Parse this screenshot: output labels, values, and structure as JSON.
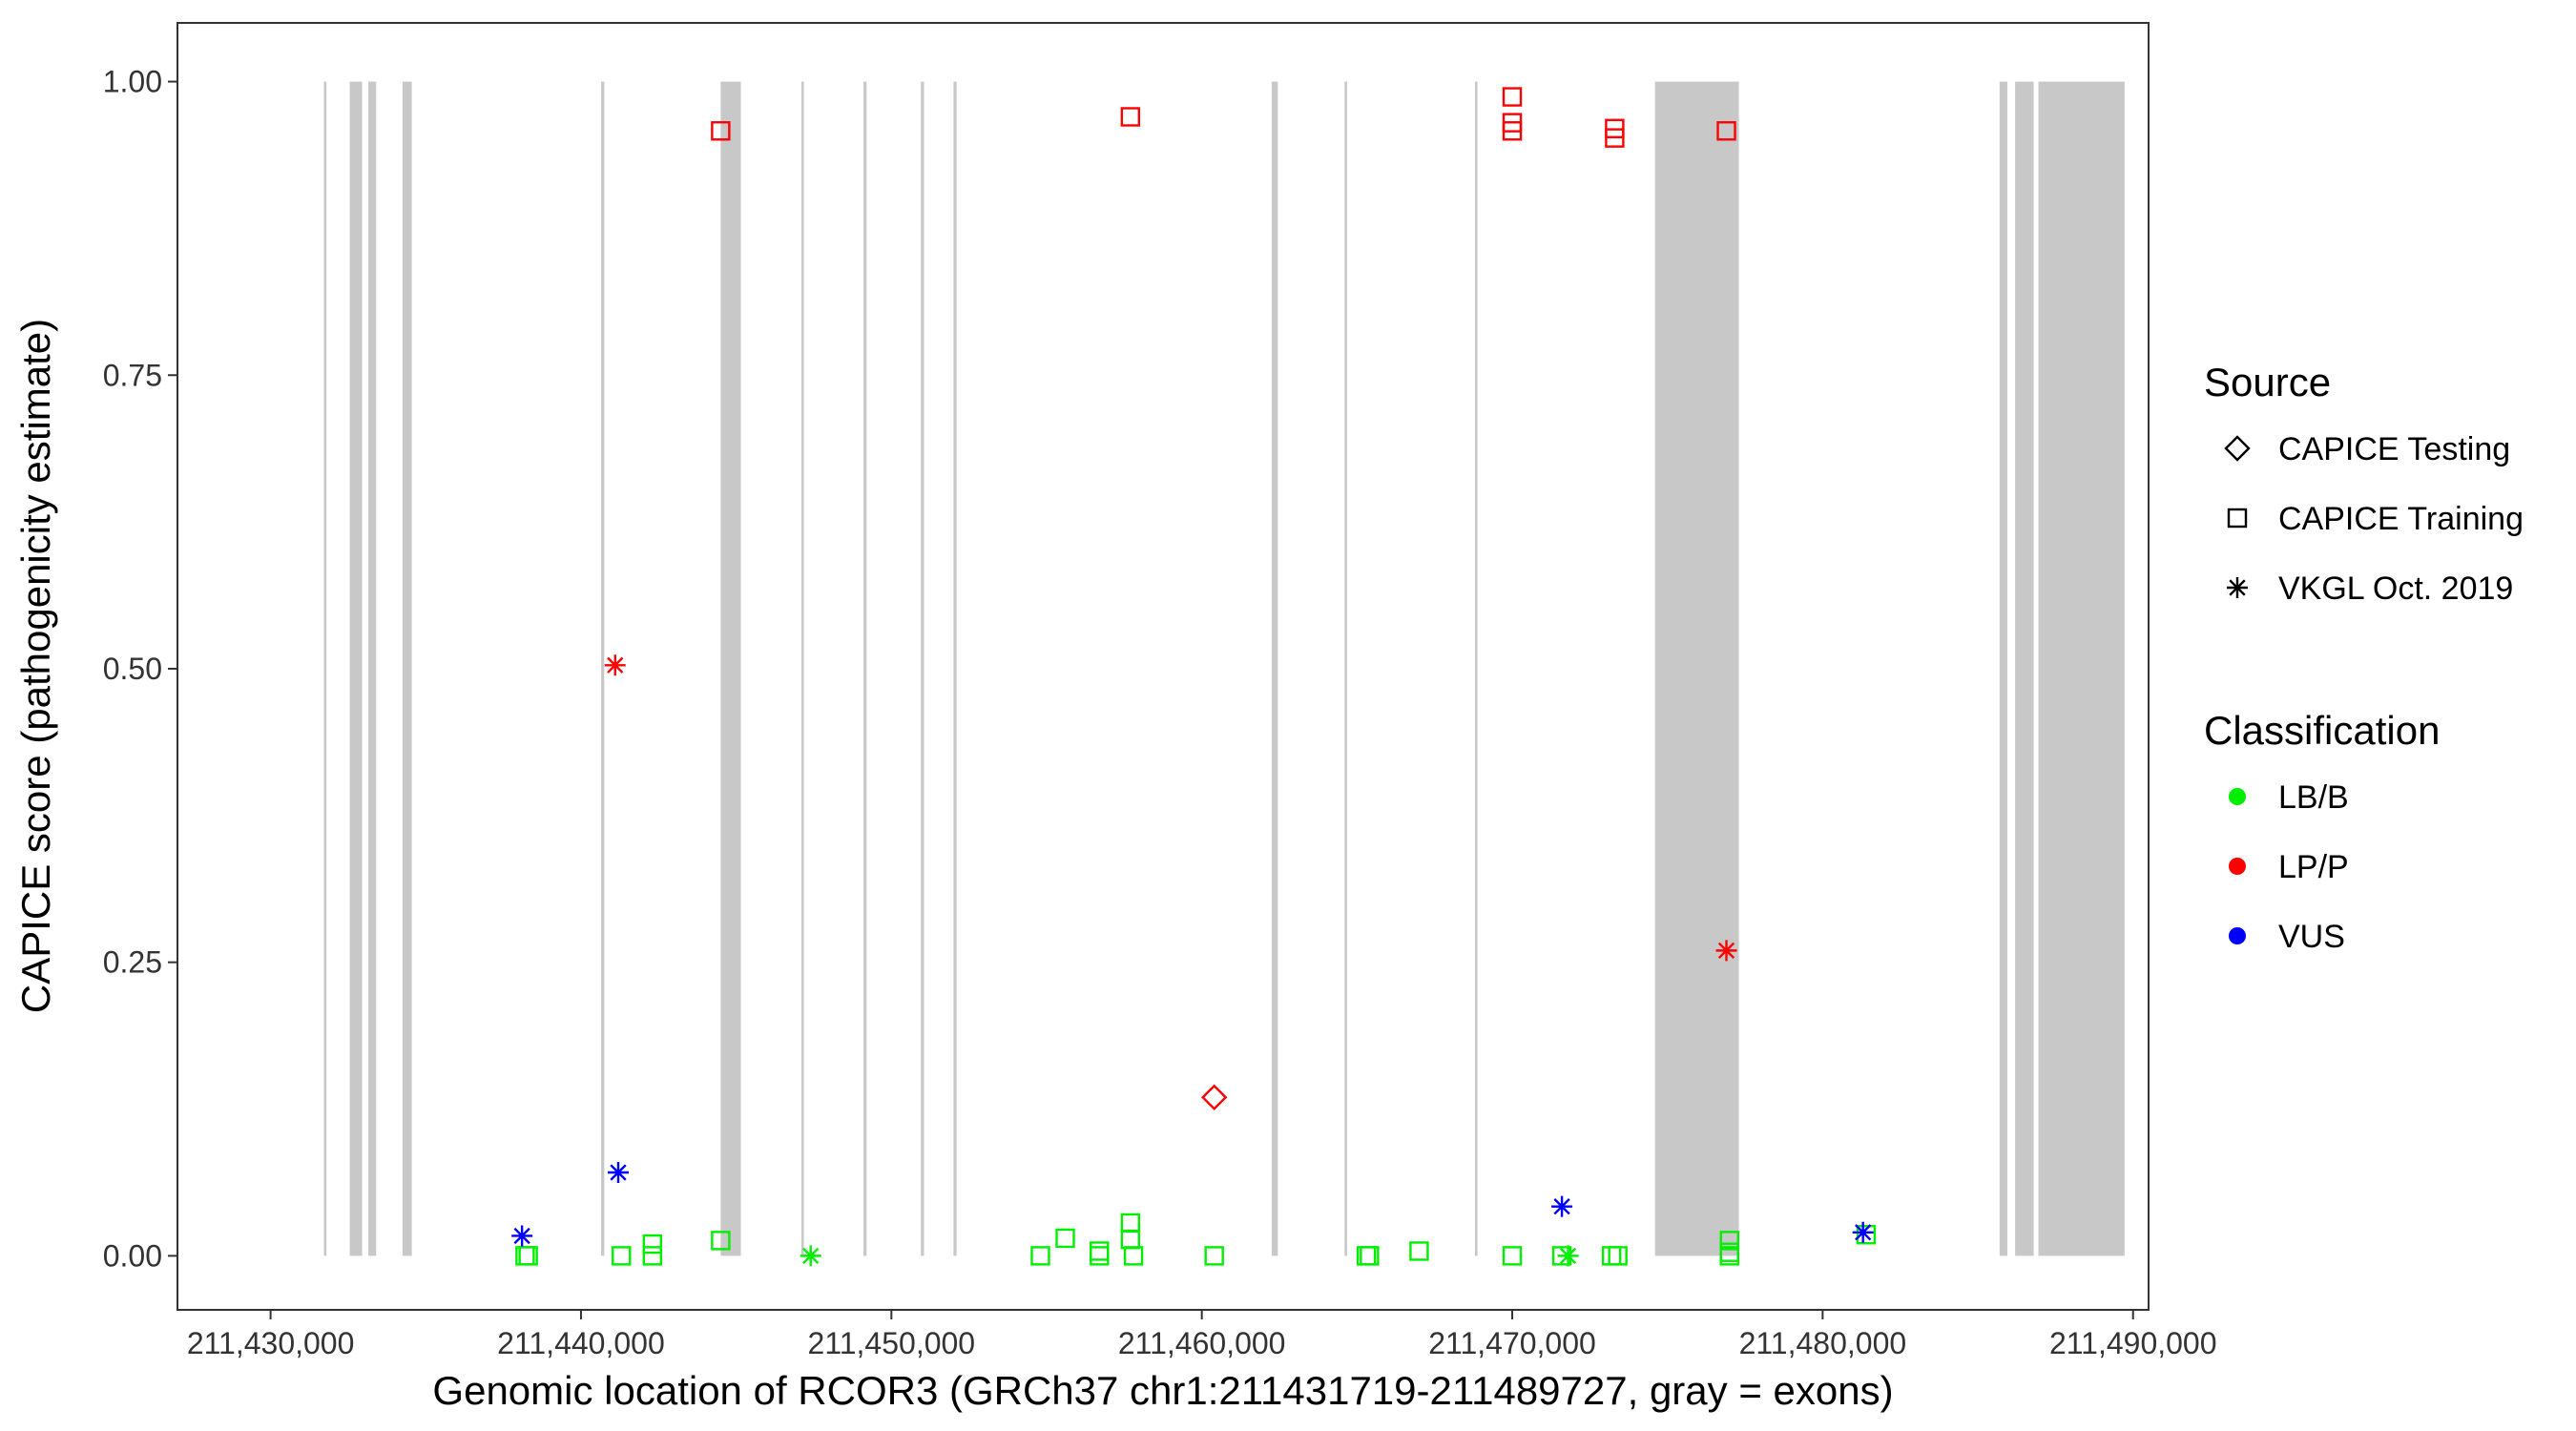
{
  "chart_data": {
    "type": "scatter",
    "title": "",
    "xlabel": "Genomic location of RCOR3 (GRCh37 chr1:211431719-211489727, gray = exons)",
    "ylabel": "CAPICE score (pathogenicity estimate)",
    "xlim": [
      211427000,
      211490500
    ],
    "ylim": [
      -0.046,
      1.05
    ],
    "x_ticks": [
      211430000,
      211440000,
      211450000,
      211460000,
      211470000,
      211480000,
      211490000
    ],
    "x_tick_labels": [
      "211,430,000",
      "211,440,000",
      "211,450,000",
      "211,460,000",
      "211,470,000",
      "211,480,000",
      "211,490,000"
    ],
    "y_ticks": [
      0,
      0.25,
      0.5,
      0.75,
      1.0
    ],
    "y_tick_labels": [
      "0.00",
      "0.25",
      "0.50",
      "0.75",
      "1.00"
    ],
    "grid": false,
    "exons": [
      [
        211431719,
        211431800
      ],
      [
        211432550,
        211432950
      ],
      [
        211433150,
        211433400
      ],
      [
        211434250,
        211434550
      ],
      [
        211440650,
        211440750
      ],
      [
        211444500,
        211445150
      ],
      [
        211447100,
        211447180
      ],
      [
        211449100,
        211449200
      ],
      [
        211450950,
        211451050
      ],
      [
        211452000,
        211452100
      ],
      [
        211462250,
        211462450
      ],
      [
        211464600,
        211464680
      ],
      [
        211468800,
        211468880
      ],
      [
        211474600,
        211477300
      ],
      [
        211485700,
        211485950
      ],
      [
        211486200,
        211486800
      ],
      [
        211486950,
        211489727
      ]
    ],
    "exon_color": "#c8c8c8",
    "legend": {
      "placement": "right",
      "source_title": "Source",
      "source_items": [
        {
          "label": "CAPICE Testing",
          "shape": "diamond"
        },
        {
          "label": "CAPICE Training",
          "shape": "square"
        },
        {
          "label": "VKGL Oct. 2019",
          "shape": "asterisk"
        }
      ],
      "class_title": "Classification",
      "class_items": [
        {
          "label": "LB/B",
          "color": "#00ee00"
        },
        {
          "label": "LP/P",
          "color": "#ff0000"
        },
        {
          "label": "VUS",
          "color": "#0000ff"
        }
      ]
    },
    "colors": {
      "LB/B": "#00ee00",
      "LP/P": "#ff0000",
      "VUS": "#0000ff"
    },
    "series": [
      {
        "source": "CAPICE Training",
        "shape": "square",
        "classification": "LP/P",
        "points": [
          [
            211444500,
            0.958
          ],
          [
            211457700,
            0.97
          ],
          [
            211470000,
            0.987
          ],
          [
            211470000,
            0.965
          ],
          [
            211470000,
            0.958
          ],
          [
            211473300,
            0.96
          ],
          [
            211473300,
            0.952
          ],
          [
            211476900,
            0.958
          ]
        ]
      },
      {
        "source": "CAPICE Training",
        "shape": "square",
        "classification": "LB/B",
        "points": [
          [
            211438200,
            0.0
          ],
          [
            211438300,
            0.0
          ],
          [
            211441300,
            0.0
          ],
          [
            211442300,
            0.01
          ],
          [
            211442300,
            0.0
          ],
          [
            211444500,
            0.013
          ],
          [
            211454800,
            0.0
          ],
          [
            211455600,
            0.015
          ],
          [
            211456700,
            0.004
          ],
          [
            211456700,
            0.0
          ],
          [
            211457700,
            0.028
          ],
          [
            211457700,
            0.014
          ],
          [
            211457800,
            0.0
          ],
          [
            211460400,
            0.0
          ],
          [
            211465300,
            0.0
          ],
          [
            211465400,
            0.0
          ],
          [
            211467000,
            0.004
          ],
          [
            211470000,
            0.0
          ],
          [
            211471600,
            0.0
          ],
          [
            211473200,
            0.0
          ],
          [
            211473400,
            0.0
          ],
          [
            211477000,
            0.013
          ],
          [
            211477000,
            0.003
          ],
          [
            211477000,
            0.0
          ],
          [
            211481400,
            0.018
          ]
        ]
      },
      {
        "source": "CAPICE Testing",
        "shape": "diamond",
        "classification": "LP/P",
        "points": [
          [
            211460400,
            0.135
          ]
        ]
      },
      {
        "source": "VKGL Oct. 2019",
        "shape": "asterisk",
        "classification": "LP/P",
        "points": [
          [
            211441100,
            0.503
          ],
          [
            211476900,
            0.26
          ]
        ]
      },
      {
        "source": "VKGL Oct. 2019",
        "shape": "asterisk",
        "classification": "VUS",
        "points": [
          [
            211438100,
            0.017
          ],
          [
            211441200,
            0.071
          ],
          [
            211471600,
            0.042
          ],
          [
            211481300,
            0.02
          ]
        ]
      },
      {
        "source": "VKGL Oct. 2019",
        "shape": "asterisk",
        "classification": "LB/B",
        "points": [
          [
            211447400,
            0.0
          ],
          [
            211471800,
            0.0
          ]
        ]
      }
    ]
  }
}
